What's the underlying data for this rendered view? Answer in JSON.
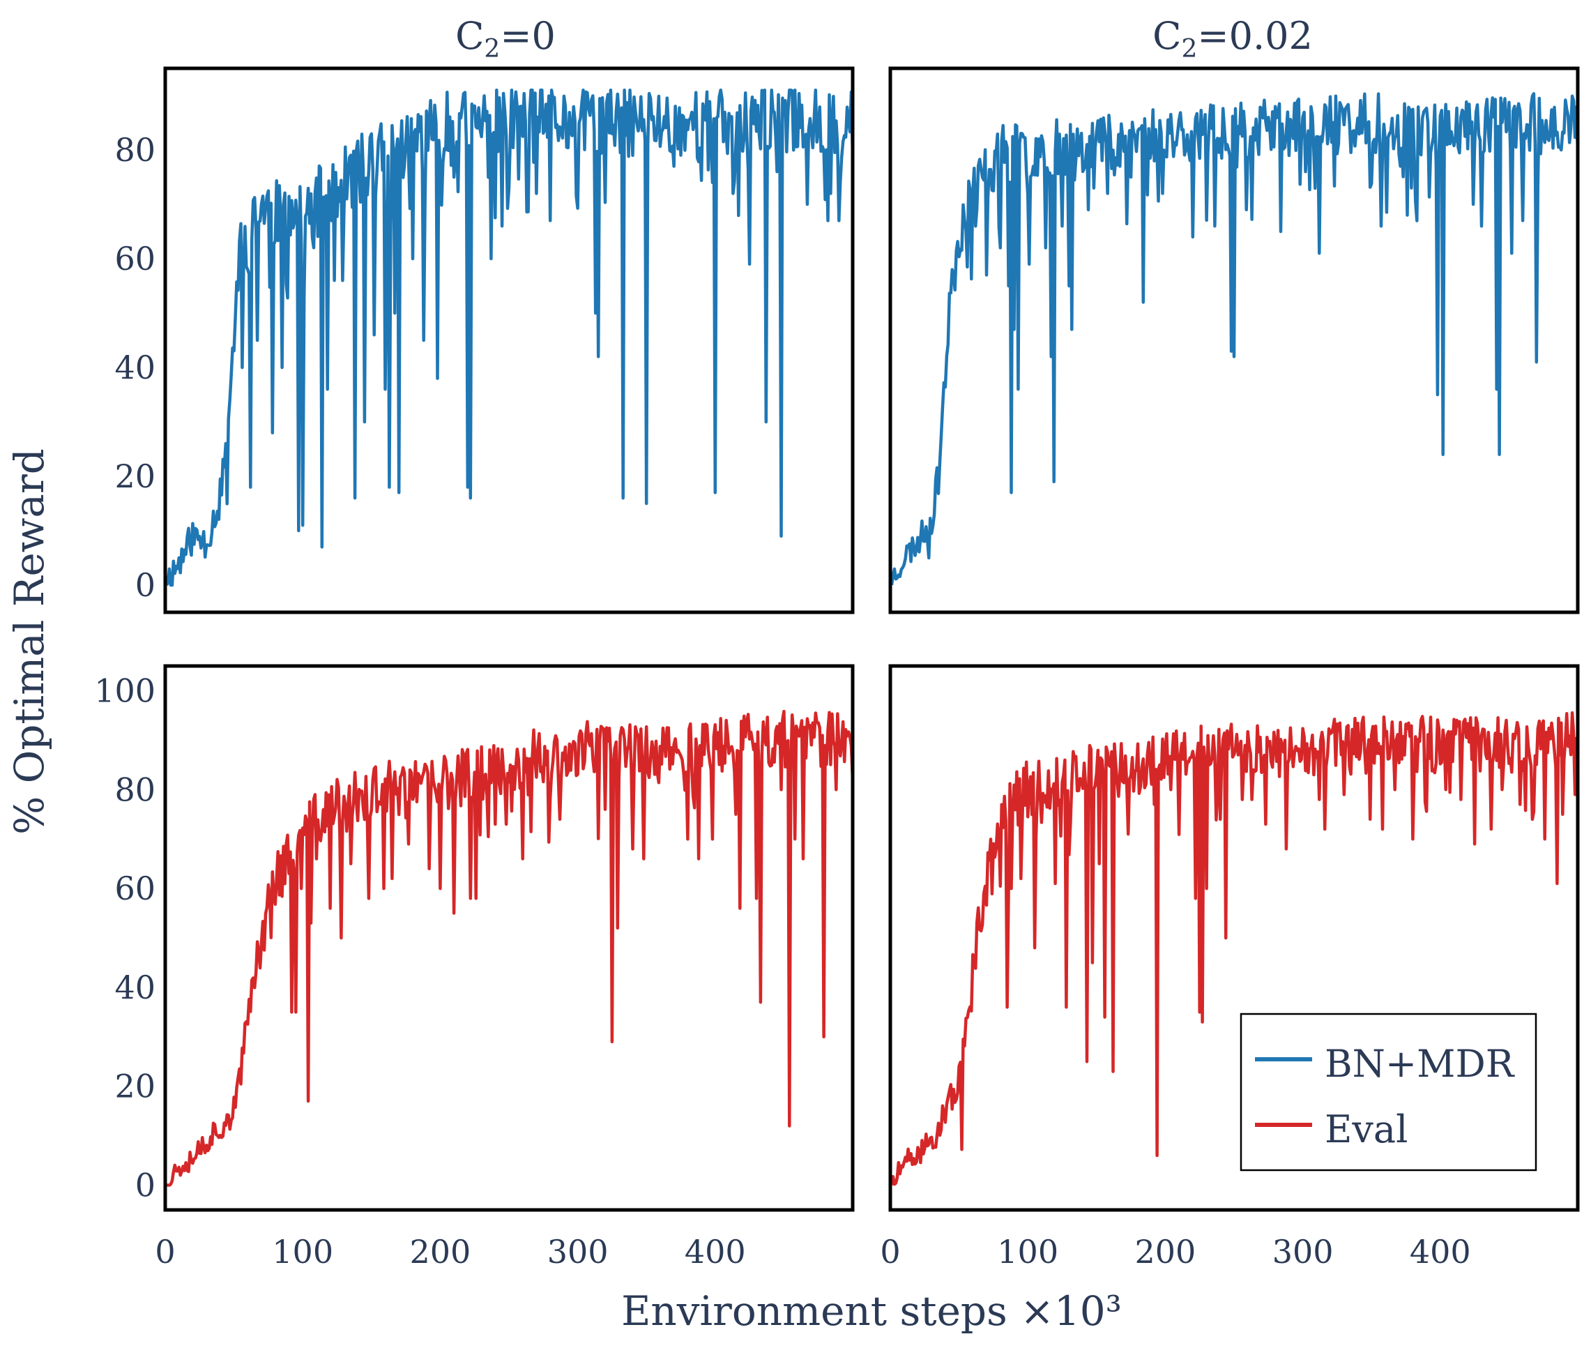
{
  "chart_data": {
    "type": "line",
    "layout": "2x2 grid, shared x axis per column, shared y axis label",
    "xlabel": "Environment steps ×10³",
    "ylabel": "% Optimal Reward",
    "column_titles": [
      {
        "base": "C",
        "sub": "2",
        "rest": "=0"
      },
      {
        "base": "C",
        "sub": "2",
        "rest": "=0.02"
      }
    ],
    "xlim": [
      0,
      500
    ],
    "xticks": [
      "0",
      "100",
      "200",
      "300",
      "400"
    ],
    "row_ylims": [
      [
        -5,
        95
      ],
      [
        -5,
        105
      ]
    ],
    "row_yticks": [
      [
        "0",
        "20",
        "40",
        "60",
        "80"
      ],
      [
        "0",
        "20",
        "40",
        "60",
        "80",
        "100"
      ]
    ],
    "legend": {
      "location": "lower-right of bottom-right panel",
      "entries": [
        {
          "label": "BN+MDR",
          "color": "#1f77b4"
        },
        {
          "label": "Eval",
          "color": "#d62728"
        }
      ]
    },
    "panels": [
      {
        "id": "top-left",
        "row": 0,
        "col": 0,
        "series": "BN+MDR",
        "color": "#1f77b4",
        "params": {
          "seed": 11,
          "final": 84,
          "midx": 48,
          "width": 9,
          "noise": 5,
          "dipProb": 0.09,
          "x0": 1
        },
        "anchors": [
          [
            1,
            1
          ],
          [
            10,
            4
          ],
          [
            20,
            9
          ],
          [
            30,
            8
          ],
          [
            40,
            16
          ],
          [
            45,
            28
          ],
          [
            50,
            46
          ],
          [
            55,
            65
          ],
          [
            60,
            62
          ],
          [
            70,
            70
          ],
          [
            80,
            68
          ],
          [
            90,
            71
          ],
          [
            100,
            66
          ],
          [
            110,
            70
          ],
          [
            120,
            73
          ],
          [
            130,
            74
          ],
          [
            140,
            76
          ],
          [
            150,
            78
          ],
          [
            160,
            79
          ],
          [
            170,
            80
          ],
          [
            180,
            82
          ],
          [
            200,
            84
          ],
          [
            230,
            85
          ],
          [
            270,
            86
          ],
          [
            300,
            85
          ],
          [
            350,
            85
          ],
          [
            400,
            85
          ],
          [
            450,
            86
          ],
          [
            500,
            85
          ]
        ],
        "dips": [
          [
            56,
            40
          ],
          [
            62,
            18
          ],
          [
            67,
            45
          ],
          [
            78,
            28
          ],
          [
            85,
            40
          ],
          [
            97,
            10
          ],
          [
            100,
            11
          ],
          [
            114,
            7
          ],
          [
            118,
            36
          ],
          [
            129,
            56
          ],
          [
            138,
            16
          ],
          [
            145,
            30
          ],
          [
            152,
            46
          ],
          [
            160,
            36
          ],
          [
            163,
            18
          ],
          [
            167,
            50
          ],
          [
            170,
            17
          ],
          [
            180,
            60
          ],
          [
            188,
            45
          ],
          [
            198,
            38
          ],
          [
            210,
            75
          ],
          [
            220,
            18
          ],
          [
            222,
            16
          ],
          [
            237,
            60
          ],
          [
            245,
            66
          ],
          [
            250,
            73
          ],
          [
            270,
            72
          ],
          [
            280,
            67
          ],
          [
            313,
            50
          ],
          [
            315,
            42
          ],
          [
            333,
            16
          ],
          [
            350,
            15
          ],
          [
            370,
            77
          ],
          [
            398,
            74
          ],
          [
            400,
            17
          ],
          [
            413,
            72
          ],
          [
            425,
            59
          ],
          [
            437,
            30
          ],
          [
            445,
            76
          ],
          [
            448,
            9
          ],
          [
            467,
            70
          ],
          [
            482,
            67
          ],
          [
            484,
            72
          ],
          [
            490,
            67
          ],
          [
            500,
            79
          ]
        ]
      },
      {
        "id": "top-right",
        "row": 0,
        "col": 1,
        "series": "BN+MDR",
        "color": "#1f77b4",
        "params": {
          "seed": 23,
          "final": 84,
          "midx": 38,
          "width": 8,
          "noise": 4.2,
          "dipProb": 0.07,
          "x0": 1
        },
        "anchors": [
          [
            1,
            1
          ],
          [
            10,
            5
          ],
          [
            20,
            8
          ],
          [
            30,
            12
          ],
          [
            35,
            20
          ],
          [
            40,
            40
          ],
          [
            45,
            55
          ],
          [
            50,
            65
          ],
          [
            60,
            73
          ],
          [
            70,
            76
          ],
          [
            80,
            79
          ],
          [
            100,
            80
          ],
          [
            130,
            81
          ],
          [
            160,
            82
          ],
          [
            200,
            83
          ],
          [
            250,
            84
          ],
          [
            300,
            84
          ],
          [
            350,
            85
          ],
          [
            400,
            84
          ],
          [
            450,
            85
          ],
          [
            500,
            85
          ]
        ],
        "dips": [
          [
            28,
            5
          ],
          [
            45,
            58
          ],
          [
            62,
            66
          ],
          [
            70,
            57
          ],
          [
            80,
            62
          ],
          [
            86,
            55
          ],
          [
            88,
            17
          ],
          [
            90,
            47
          ],
          [
            93,
            36
          ],
          [
            101,
            59
          ],
          [
            113,
            62
          ],
          [
            117,
            42
          ],
          [
            119,
            19
          ],
          [
            125,
            66
          ],
          [
            130,
            55
          ],
          [
            132,
            47
          ],
          [
            144,
            69
          ],
          [
            148,
            73
          ],
          [
            158,
            72
          ],
          [
            175,
            75
          ],
          [
            184,
            52
          ],
          [
            198,
            72
          ],
          [
            220,
            64
          ],
          [
            236,
            66
          ],
          [
            248,
            43
          ],
          [
            250,
            42
          ],
          [
            259,
            69
          ],
          [
            284,
            65
          ],
          [
            302,
            76
          ],
          [
            312,
            61
          ],
          [
            357,
            66
          ],
          [
            371,
            77
          ],
          [
            379,
            73
          ],
          [
            398,
            35
          ],
          [
            402,
            24
          ],
          [
            424,
            70
          ],
          [
            430,
            66
          ],
          [
            441,
            36
          ],
          [
            443,
            24
          ],
          [
            452,
            61
          ],
          [
            460,
            67
          ],
          [
            470,
            41
          ],
          [
            488,
            80
          ],
          [
            500,
            80
          ]
        ]
      },
      {
        "id": "bottom-left",
        "row": 1,
        "col": 0,
        "series": "Eval",
        "color": "#d62728",
        "params": {
          "seed": 37,
          "final": 88,
          "midx": 62,
          "width": 18,
          "noise": 4.5,
          "dipProb": 0.04,
          "x0": 1
        },
        "anchors": [
          [
            1,
            0
          ],
          [
            10,
            4
          ],
          [
            20,
            6
          ],
          [
            30,
            9
          ],
          [
            40,
            12
          ],
          [
            50,
            15
          ],
          [
            55,
            22
          ],
          [
            60,
            34
          ],
          [
            65,
            44
          ],
          [
            70,
            50
          ],
          [
            75,
            56
          ],
          [
            80,
            62
          ],
          [
            90,
            66
          ],
          [
            100,
            70
          ],
          [
            110,
            74
          ],
          [
            120,
            76
          ],
          [
            140,
            78
          ],
          [
            160,
            80
          ],
          [
            180,
            80
          ],
          [
            200,
            81
          ],
          [
            220,
            83
          ],
          [
            240,
            84
          ],
          [
            260,
            86
          ],
          [
            280,
            87
          ],
          [
            300,
            88
          ],
          [
            330,
            88
          ],
          [
            360,
            88
          ],
          [
            400,
            89
          ],
          [
            450,
            90
          ],
          [
            500,
            90
          ]
        ],
        "dips": [
          [
            104,
            17
          ],
          [
            92,
            35
          ],
          [
            95,
            35
          ],
          [
            99,
            60
          ],
          [
            106,
            53
          ],
          [
            110,
            66
          ],
          [
            120,
            56
          ],
          [
            128,
            50
          ],
          [
            135,
            65
          ],
          [
            148,
            58
          ],
          [
            159,
            60
          ],
          [
            165,
            62
          ],
          [
            177,
            69
          ],
          [
            192,
            64
          ],
          [
            200,
            60
          ],
          [
            210,
            55
          ],
          [
            222,
            58
          ],
          [
            226,
            58
          ],
          [
            240,
            73
          ],
          [
            248,
            73
          ],
          [
            260,
            66
          ],
          [
            287,
            74
          ],
          [
            320,
            76
          ],
          [
            325,
            29
          ],
          [
            329,
            52
          ],
          [
            340,
            68
          ],
          [
            348,
            66
          ],
          [
            380,
            70
          ],
          [
            388,
            66
          ],
          [
            398,
            70
          ],
          [
            415,
            75
          ],
          [
            418,
            56
          ],
          [
            430,
            58
          ],
          [
            433,
            37
          ],
          [
            448,
            80
          ],
          [
            454,
            12
          ],
          [
            458,
            70
          ],
          [
            464,
            66
          ],
          [
            479,
            30
          ],
          [
            488,
            80
          ],
          [
            500,
            82
          ]
        ]
      },
      {
        "id": "bottom-right",
        "row": 1,
        "col": 1,
        "series": "Eval",
        "color": "#d62728",
        "params": {
          "seed": 51,
          "final": 88,
          "midx": 50,
          "width": 14,
          "noise": 4.5,
          "dipProb": 0.04,
          "x0": 1
        },
        "anchors": [
          [
            1,
            0
          ],
          [
            10,
            4
          ],
          [
            20,
            6
          ],
          [
            30,
            9
          ],
          [
            40,
            14
          ],
          [
            50,
            22
          ],
          [
            55,
            30
          ],
          [
            60,
            42
          ],
          [
            65,
            55
          ],
          [
            70,
            62
          ],
          [
            80,
            72
          ],
          [
            90,
            78
          ],
          [
            100,
            80
          ],
          [
            120,
            82
          ],
          [
            140,
            83
          ],
          [
            160,
            84
          ],
          [
            180,
            85
          ],
          [
            200,
            86
          ],
          [
            250,
            88
          ],
          [
            300,
            88
          ],
          [
            350,
            89
          ],
          [
            400,
            89
          ],
          [
            450,
            89
          ],
          [
            500,
            90
          ]
        ],
        "dips": [
          [
            85,
            36
          ],
          [
            88,
            60
          ],
          [
            95,
            62
          ],
          [
            105,
            48
          ],
          [
            120,
            61
          ],
          [
            128,
            36
          ],
          [
            131,
            73
          ],
          [
            143,
            25
          ],
          [
            147,
            45
          ],
          [
            152,
            65
          ],
          [
            156,
            34
          ],
          [
            162,
            23
          ],
          [
            173,
            71
          ],
          [
            192,
            77
          ],
          [
            194,
            6
          ],
          [
            204,
            80
          ],
          [
            222,
            58
          ],
          [
            225,
            35
          ],
          [
            227,
            33
          ],
          [
            230,
            60
          ],
          [
            240,
            74
          ],
          [
            244,
            50
          ],
          [
            256,
            78
          ],
          [
            263,
            78
          ],
          [
            273,
            73
          ],
          [
            288,
            68
          ],
          [
            312,
            78
          ],
          [
            316,
            72
          ],
          [
            330,
            79
          ],
          [
            349,
            74
          ],
          [
            358,
            72
          ],
          [
            367,
            80
          ],
          [
            380,
            70
          ],
          [
            404,
            80
          ],
          [
            415,
            78
          ],
          [
            425,
            69
          ],
          [
            437,
            72
          ],
          [
            445,
            80
          ],
          [
            458,
            77
          ],
          [
            467,
            74
          ],
          [
            476,
            70
          ],
          [
            485,
            61
          ],
          [
            489,
            75
          ],
          [
            498,
            79
          ]
        ]
      }
    ]
  }
}
